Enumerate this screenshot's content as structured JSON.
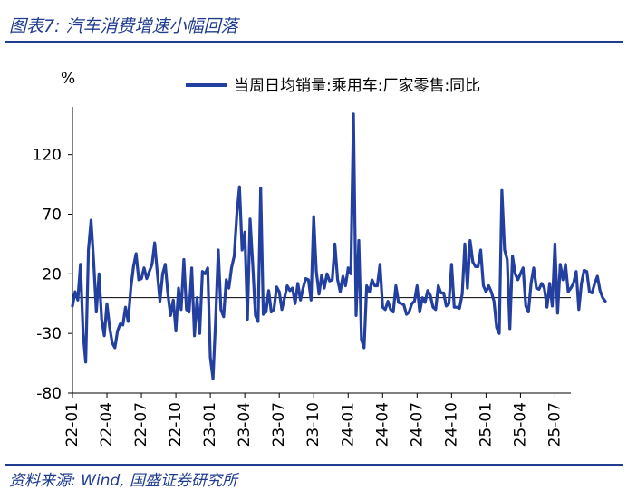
{
  "figure": {
    "title": "图表7: 汽车消费增速小幅回落",
    "source": "资料来源: Wind, 国盛证券研究所"
  },
  "chart_data": {
    "type": "line",
    "ylabel": "%",
    "ylim": [
      -80,
      160
    ],
    "yticks": [
      -80,
      -30,
      20,
      70,
      120
    ],
    "xlim": [
      0,
      188
    ],
    "xticks": [
      {
        "label": "22-01",
        "i": 0
      },
      {
        "label": "22-04",
        "i": 13
      },
      {
        "label": "22-07",
        "i": 26
      },
      {
        "label": "22-10",
        "i": 39
      },
      {
        "label": "23-01",
        "i": 52
      },
      {
        "label": "23-04",
        "i": 65
      },
      {
        "label": "23-07",
        "i": 78
      },
      {
        "label": "23-10",
        "i": 91
      },
      {
        "label": "24-01",
        "i": 104
      },
      {
        "label": "24-04",
        "i": 117
      },
      {
        "label": "24-07",
        "i": 130
      },
      {
        "label": "24-10",
        "i": 143
      },
      {
        "label": "25-01",
        "i": 156
      },
      {
        "label": "25-04",
        "i": 169
      },
      {
        "label": "25-07",
        "i": 182
      }
    ],
    "legend_position": "top-right",
    "grid": false,
    "series": [
      {
        "name": "当周日均销量:乘用车:厂家零售:同比",
        "color": "#2340a0",
        "values": [
          -7,
          5,
          -2,
          28,
          -30,
          -54,
          40,
          65,
          30,
          -12,
          20,
          -18,
          -32,
          -5,
          -25,
          -38,
          -42,
          -28,
          -22,
          -23,
          -8,
          -20,
          8,
          26,
          37,
          15,
          16,
          25,
          16,
          22,
          28,
          46,
          21,
          -3,
          20,
          28,
          3,
          -15,
          -2,
          -28,
          8,
          -10,
          32,
          -10,
          -12,
          25,
          -32,
          0,
          -30,
          22,
          20,
          25,
          -50,
          -68,
          -18,
          40,
          -10,
          -16,
          15,
          8,
          25,
          35,
          70,
          93,
          40,
          55,
          -18,
          66,
          28,
          -15,
          -20,
          92,
          -14,
          -12,
          6,
          -12,
          -10,
          9,
          5,
          -10,
          0,
          10,
          6,
          8,
          -5,
          12,
          -2,
          8,
          16,
          15,
          -2,
          68,
          22,
          3,
          19,
          8,
          20,
          14,
          15,
          45,
          15,
          5,
          18,
          10,
          25,
          20,
          154,
          -15,
          48,
          -35,
          -42,
          10,
          5,
          15,
          10,
          10,
          28,
          -8,
          -10,
          -3,
          -10,
          -12,
          10,
          -4,
          -5,
          -6,
          -14,
          -12,
          -5,
          -3,
          10,
          -12,
          0,
          -4,
          6,
          2,
          -8,
          -10,
          10,
          4,
          4,
          -7,
          -5,
          28,
          -8,
          -8,
          -9,
          3,
          45,
          8,
          48,
          30,
          26,
          26,
          40,
          10,
          5,
          10,
          5,
          -3,
          -25,
          -30,
          90,
          40,
          32,
          -26,
          35,
          20,
          15,
          20,
          25,
          -7,
          -12,
          12,
          25,
          8,
          7,
          12,
          8,
          -8,
          12,
          -7,
          45,
          -13,
          28,
          15,
          28,
          5,
          8,
          12,
          22,
          -10,
          12,
          23,
          22,
          5,
          4,
          12,
          18,
          6,
          0,
          -3
        ]
      }
    ]
  }
}
